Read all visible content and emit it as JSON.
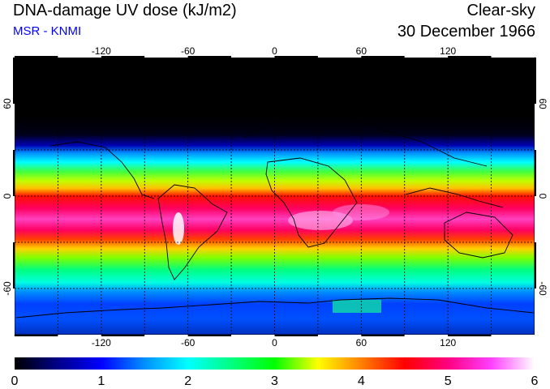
{
  "header": {
    "title": "DNA-damage UV dose (kJ/m2)",
    "credit": "MSR - KNMI",
    "condition": "Clear-sky",
    "date": "30 December 1966"
  },
  "map": {
    "projection": "equirectangular",
    "lon_range": [
      -180,
      180
    ],
    "lat_range": [
      -90,
      90
    ],
    "grid": true,
    "lon_ticks": [
      "-120",
      "-60",
      "0",
      "60",
      "120"
    ],
    "lat_ticks": [
      "60",
      "0",
      "-60"
    ],
    "gradient_stops": [
      {
        "lat": 90,
        "color": "#000000"
      },
      {
        "lat": 52,
        "color": "#000000"
      },
      {
        "lat": 40,
        "color": "#000018"
      },
      {
        "lat": 33,
        "color": "#0000b0"
      },
      {
        "lat": 28,
        "color": "#0090ff"
      },
      {
        "lat": 22,
        "color": "#00ffff"
      },
      {
        "lat": 16,
        "color": "#40ff40"
      },
      {
        "lat": 10,
        "color": "#c0ff00"
      },
      {
        "lat": 5,
        "color": "#ffc000"
      },
      {
        "lat": 0,
        "color": "#ff1000"
      },
      {
        "lat": -8,
        "color": "#ff0060"
      },
      {
        "lat": -15,
        "color": "#ff40c0"
      },
      {
        "lat": -22,
        "color": "#ff0060"
      },
      {
        "lat": -28,
        "color": "#ff4000"
      },
      {
        "lat": -34,
        "color": "#ffd000"
      },
      {
        "lat": -40,
        "color": "#80ff00"
      },
      {
        "lat": -48,
        "color": "#00ff80"
      },
      {
        "lat": -56,
        "color": "#00ffe0"
      },
      {
        "lat": -62,
        "color": "#0090ff"
      },
      {
        "lat": -70,
        "color": "#0040ff"
      },
      {
        "lat": -80,
        "color": "#0050ff"
      },
      {
        "lat": -90,
        "color": "#0030c0"
      }
    ]
  },
  "colorbar": {
    "min": 0,
    "max": 6,
    "labels": [
      "0",
      "1",
      "2",
      "3",
      "4",
      "5",
      "6"
    ],
    "stops": [
      {
        "value": 0,
        "color": "#000000"
      },
      {
        "value": 0.5,
        "color": "#00008a"
      },
      {
        "value": 1,
        "color": "#0000ff"
      },
      {
        "value": 1.5,
        "color": "#0090ff"
      },
      {
        "value": 2,
        "color": "#00ffff"
      },
      {
        "value": 2.5,
        "color": "#00ff80"
      },
      {
        "value": 3,
        "color": "#00ff00"
      },
      {
        "value": 3.5,
        "color": "#ffff00"
      },
      {
        "value": 4,
        "color": "#ff8000"
      },
      {
        "value": 4.5,
        "color": "#ff0000"
      },
      {
        "value": 5,
        "color": "#ff0080"
      },
      {
        "value": 5.5,
        "color": "#ff40ff"
      },
      {
        "value": 6,
        "color": "#ffffff"
      }
    ]
  }
}
